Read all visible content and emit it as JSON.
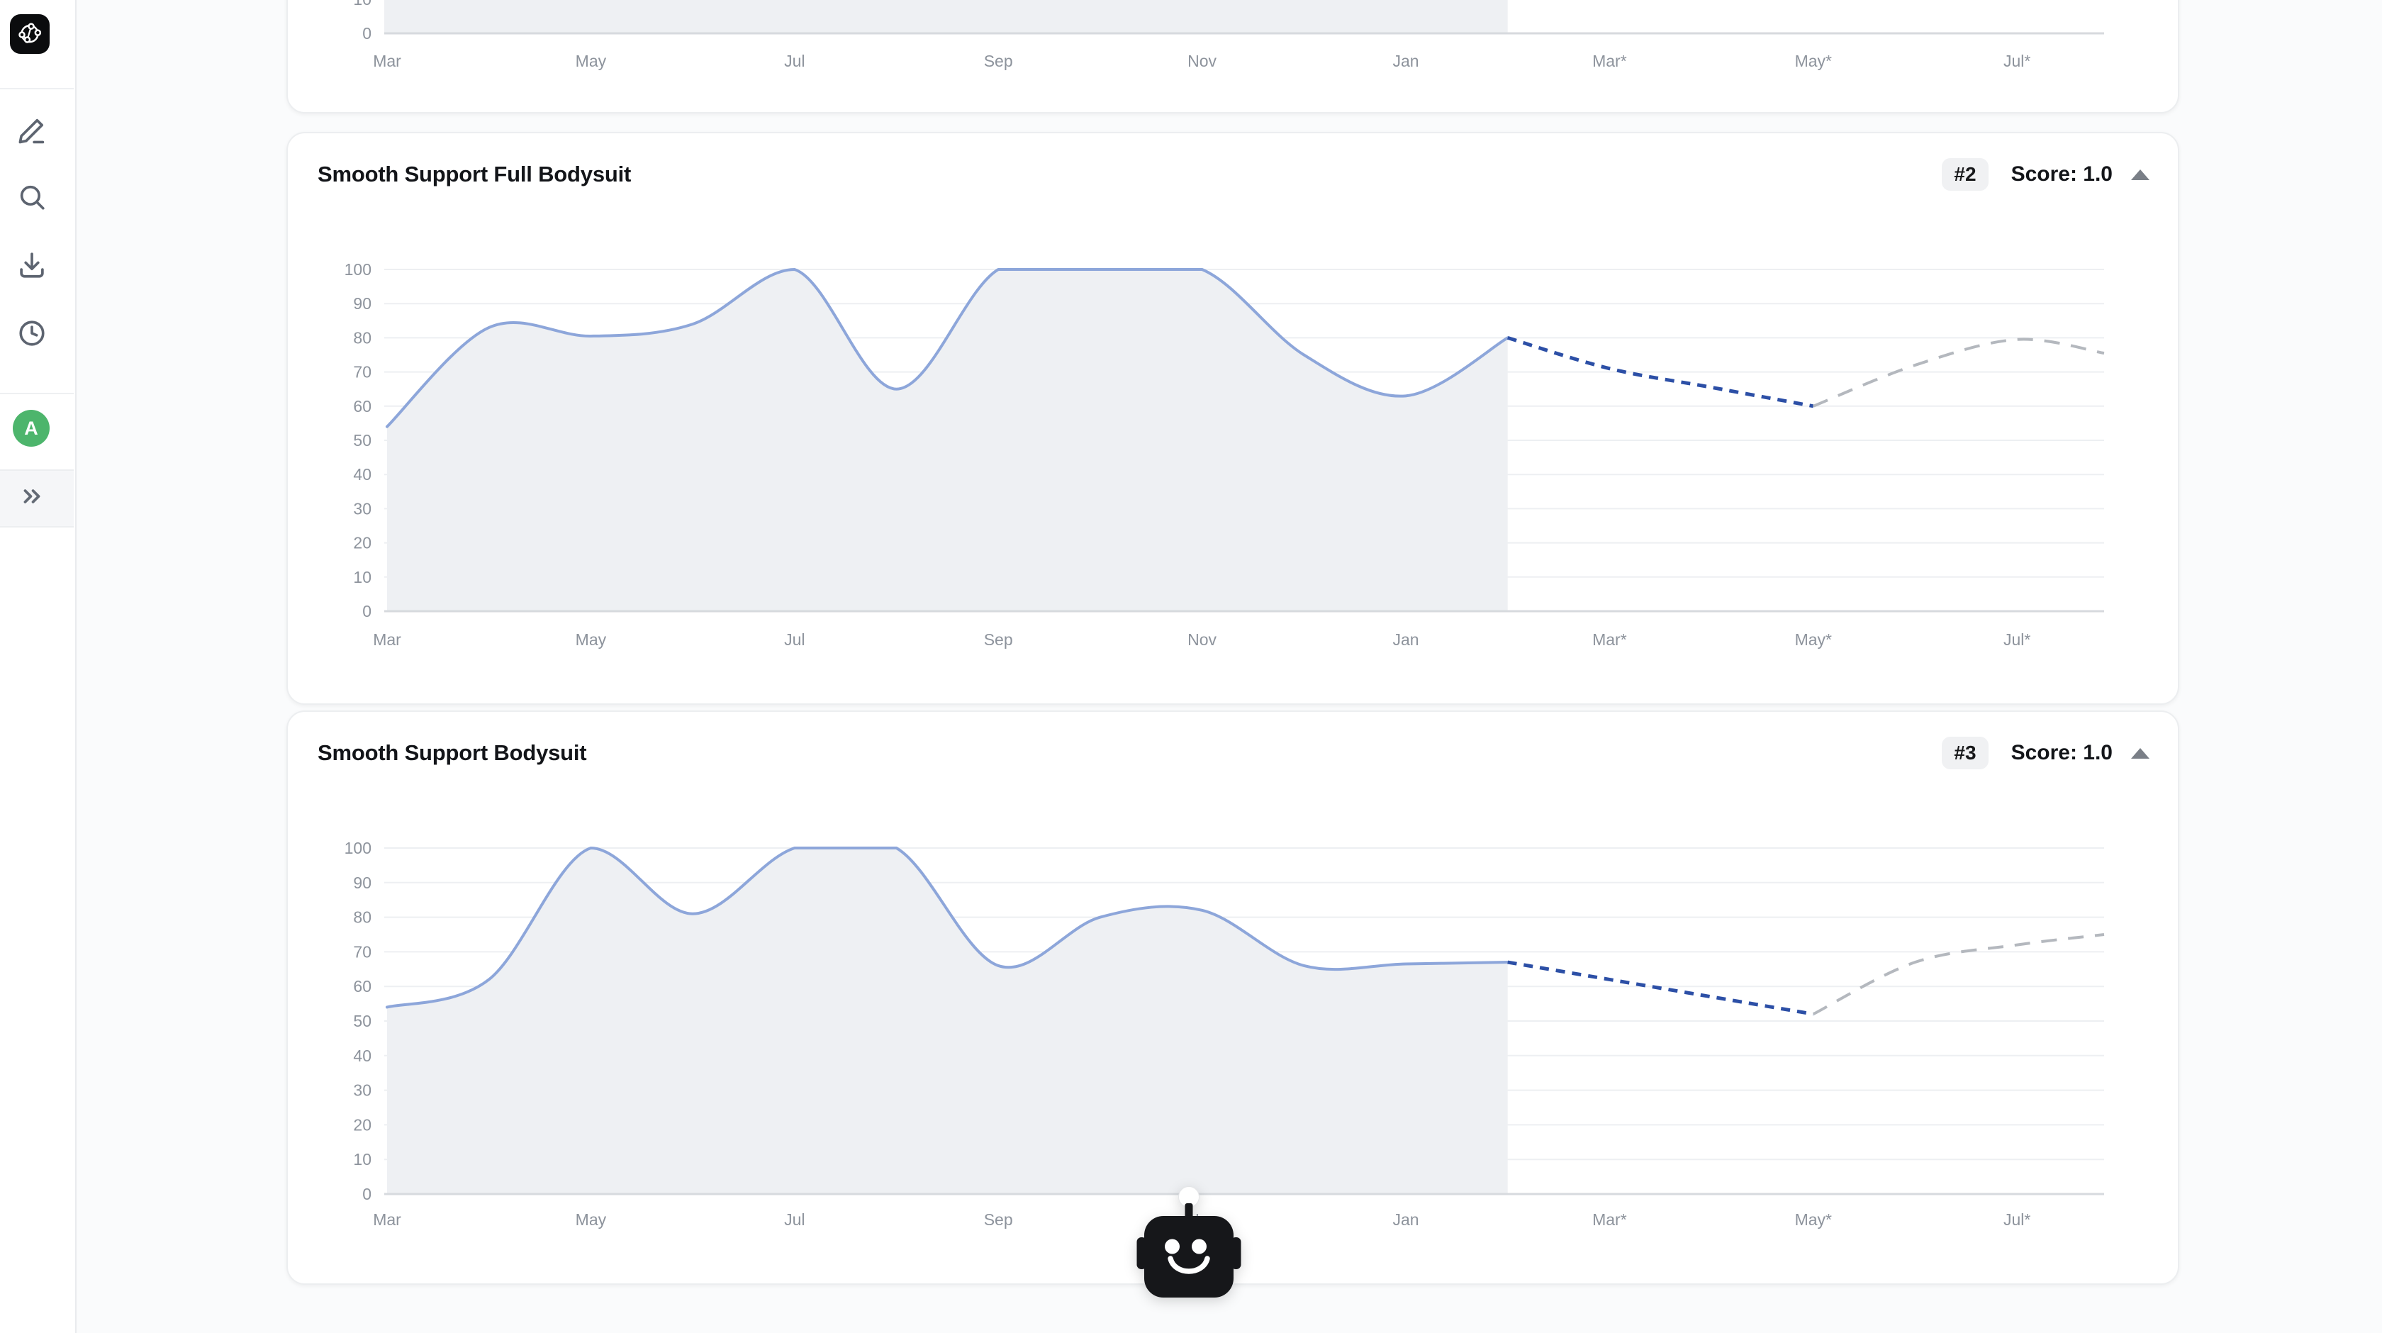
{
  "page": {
    "background": "#fafbfc"
  },
  "sidebar": {
    "logo_name": "network-graph-logo",
    "nav": [
      {
        "id": "edit",
        "icon": "pencil-icon"
      },
      {
        "id": "search",
        "icon": "search-icon"
      },
      {
        "id": "download",
        "icon": "download-icon"
      },
      {
        "id": "history",
        "icon": "clock-icon"
      }
    ],
    "avatar_initial": "A",
    "avatar_color": "#4db56c",
    "collapse_icon": "chevrons-right-icon"
  },
  "assistant": {
    "name": "robot-assistant-button"
  },
  "cards": [
    {
      "kind": "chart-card-partial",
      "title": "",
      "rank": "",
      "score": ""
    },
    {
      "kind": "chart-card",
      "title": "Smooth Support Full Bodysuit",
      "rank": "#2",
      "score": "Score: 1.0"
    },
    {
      "kind": "chart-card",
      "title": "Smooth Support Bodysuit",
      "rank": "#3",
      "score": "Score: 1.0"
    }
  ],
  "colors": {
    "historical_line": "#8da6da",
    "historical_fill": "#eef0f3",
    "forecast_primary": "#2c4fa6",
    "forecast_secondary": "#b4b8be",
    "gridline": "#edeff2",
    "axis_line": "#d7dade",
    "tick_text": "#8d939c"
  },
  "chart_data": [
    {
      "type": "line",
      "partial": true,
      "note_visible": "only bottom sliver of chart visible at top of viewport",
      "x_ticks": [
        "Mar",
        "May",
        "Jul",
        "Sep",
        "Nov",
        "Jan",
        "Mar*",
        "May*",
        "Jul*"
      ],
      "y_ticks_visible": [
        0,
        10
      ],
      "ylim": [
        0,
        100
      ],
      "historical_region_end": "Feb"
    },
    {
      "type": "line",
      "title": "Smooth Support Full Bodysuit",
      "ylim": [
        0,
        100
      ],
      "grid": true,
      "x_monthly": [
        "Mar",
        "Apr",
        "May",
        "Jun",
        "Jul",
        "Aug",
        "Sep",
        "Oct",
        "Nov",
        "Dec",
        "Jan",
        "Feb",
        "Mar*",
        "Apr*",
        "May*",
        "Jun*",
        "Jul*",
        "Aug*"
      ],
      "x_ticks": [
        "Mar",
        "May",
        "Jul",
        "Sep",
        "Nov",
        "Jan",
        "Mar*",
        "May*",
        "Jul*"
      ],
      "series": [
        {
          "name": "historical",
          "style": "solid",
          "color": "#8da6da",
          "area_fill": "#eef0f3",
          "months": [
            "Mar",
            "Apr",
            "May",
            "Jun",
            "Jul",
            "Aug",
            "Sep",
            "Oct",
            "Nov",
            "Dec",
            "Jan",
            "Feb"
          ],
          "values": [
            54,
            83,
            80.5,
            84,
            100,
            65,
            100,
            100,
            100,
            75,
            63,
            80
          ]
        },
        {
          "name": "forecast-primary",
          "style": "dashed",
          "color": "#2c4fa6",
          "months": [
            "Feb",
            "Mar*",
            "Apr*",
            "May*"
          ],
          "values": [
            80,
            71,
            65.5,
            60
          ]
        },
        {
          "name": "forecast-secondary",
          "style": "dashed",
          "color": "#b4b8be",
          "months": [
            "May*",
            "Jun*",
            "Jul*",
            "Aug*"
          ],
          "values": [
            60,
            72,
            79.5,
            75.5
          ]
        }
      ]
    },
    {
      "type": "line",
      "title": "Smooth Support Bodysuit",
      "ylim": [
        0,
        100
      ],
      "grid": true,
      "x_monthly": [
        "Mar",
        "Apr",
        "May",
        "Jun",
        "Jul",
        "Aug",
        "Sep",
        "Oct",
        "Nov",
        "Dec",
        "Jan",
        "Feb",
        "Mar*",
        "Apr*",
        "May*",
        "Jun*",
        "Jul*",
        "Aug*"
      ],
      "x_ticks": [
        "Mar",
        "May",
        "Jul",
        "Sep",
        "Nov",
        "Jan",
        "Mar*",
        "May*",
        "Jul*"
      ],
      "series": [
        {
          "name": "historical",
          "style": "solid",
          "color": "#8da6da",
          "area_fill": "#eef0f3",
          "months": [
            "Mar",
            "Apr",
            "May",
            "Jun",
            "Jul",
            "Aug",
            "Sep",
            "Oct",
            "Nov",
            "Dec",
            "Jan",
            "Feb"
          ],
          "values": [
            54,
            62,
            100,
            81,
            100,
            100,
            66,
            80,
            82,
            66,
            66.5,
            67
          ]
        },
        {
          "name": "forecast-primary",
          "style": "dashed",
          "color": "#2c4fa6",
          "months": [
            "Feb",
            "Mar*",
            "Apr*",
            "May*"
          ],
          "values": [
            67,
            62,
            57,
            52
          ]
        },
        {
          "name": "forecast-secondary",
          "style": "dashed",
          "color": "#b4b8be",
          "months": [
            "May*",
            "Jun*",
            "Jul*",
            "Aug*"
          ],
          "values": [
            52,
            67,
            72,
            75
          ]
        }
      ]
    }
  ]
}
